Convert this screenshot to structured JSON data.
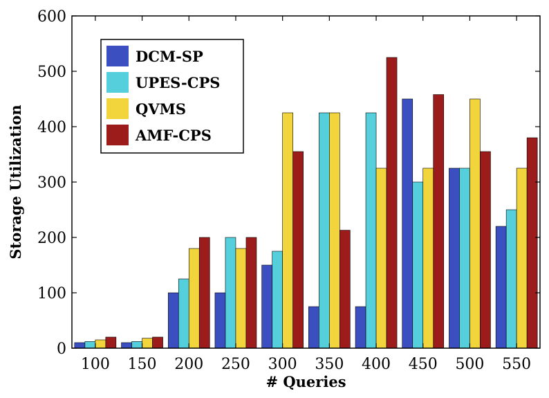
{
  "chart_data": {
    "type": "bar",
    "title": "",
    "xlabel": "# Queries",
    "ylabel": "Storage Utilization",
    "categories": [
      "100",
      "150",
      "200",
      "250",
      "300",
      "350",
      "400",
      "450",
      "500",
      "550"
    ],
    "ylim": [
      0,
      600
    ],
    "yticks": [
      0,
      100,
      200,
      300,
      400,
      500,
      600
    ],
    "grid": false,
    "legend_position": "top-left",
    "series": [
      {
        "name": "DCM-SP",
        "color": "#3b4fc0",
        "values": [
          10,
          10,
          100,
          100,
          150,
          75,
          75,
          450,
          325,
          220
        ]
      },
      {
        "name": "UPES-CPS",
        "color": "#55cfdc",
        "values": [
          12,
          12,
          125,
          200,
          175,
          425,
          425,
          300,
          325,
          250
        ]
      },
      {
        "name": "QVMS",
        "color": "#f2d53c",
        "values": [
          15,
          18,
          180,
          180,
          425,
          425,
          325,
          325,
          450,
          325
        ]
      },
      {
        "name": "AMF-CPS",
        "color": "#9c1c1c",
        "values": [
          20,
          20,
          200,
          200,
          355,
          213,
          525,
          458,
          355,
          380
        ]
      }
    ]
  }
}
